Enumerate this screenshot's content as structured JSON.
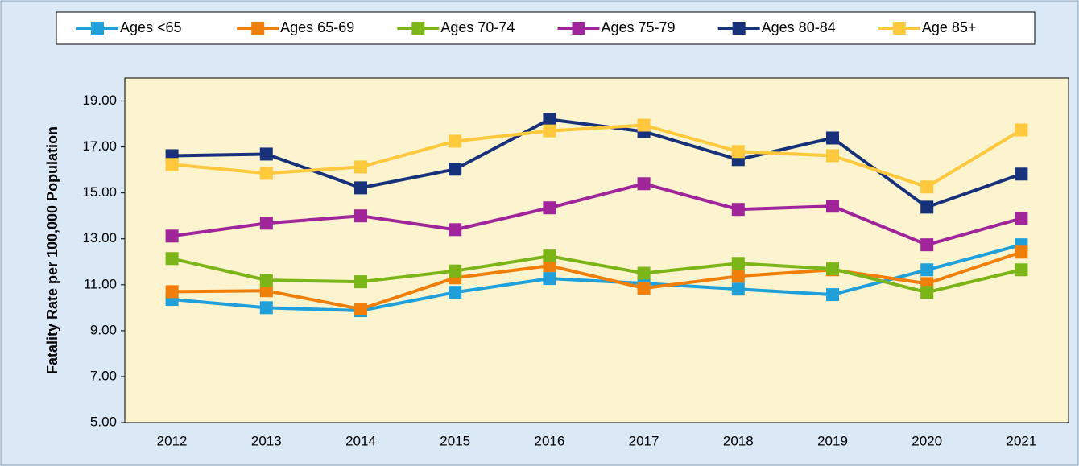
{
  "chart_data": {
    "type": "line",
    "y_label": "Fatality Rate per 100,000 Population",
    "categories": [
      "2012",
      "2013",
      "2014",
      "2015",
      "2016",
      "2017",
      "2018",
      "2019",
      "2020",
      "2021"
    ],
    "series": [
      {
        "name": "Ages <65",
        "color": "#1fa0db",
        "values": [
          10.36,
          10.0,
          9.87,
          10.67,
          11.27,
          11.06,
          10.81,
          10.57,
          11.65,
          12.74
        ]
      },
      {
        "name": "Ages 65-69",
        "color": "#f07f09",
        "values": [
          10.7,
          10.74,
          9.94,
          11.3,
          11.83,
          10.85,
          11.37,
          11.65,
          11.05,
          12.42
        ]
      },
      {
        "name": "Ages 70-74",
        "color": "#7cb518",
        "values": [
          12.14,
          11.2,
          11.13,
          11.6,
          12.25,
          11.5,
          11.93,
          11.69,
          10.67,
          11.65
        ]
      },
      {
        "name": "Ages 75-79",
        "color": "#a0259a",
        "values": [
          13.12,
          13.68,
          14.0,
          13.4,
          14.35,
          15.4,
          14.28,
          14.42,
          12.74,
          13.89
        ]
      },
      {
        "name": "Ages 80-84",
        "color": "#17327a",
        "values": [
          16.62,
          16.69,
          15.22,
          16.03,
          18.2,
          17.67,
          16.45,
          17.39,
          14.38,
          15.82
        ]
      },
      {
        "name": "Age 85+",
        "color": "#ffc83d",
        "values": [
          16.24,
          15.85,
          16.13,
          17.25,
          17.7,
          17.95,
          16.8,
          16.62,
          15.26,
          17.74
        ]
      }
    ],
    "ylim": [
      5,
      20
    ],
    "yticks": [
      {
        "value": 5,
        "label": "5.00"
      },
      {
        "value": 7,
        "label": "7.00"
      },
      {
        "value": 9,
        "label": "9.00"
      },
      {
        "value": 11,
        "label": "11.00"
      },
      {
        "value": 13,
        "label": "13.00"
      },
      {
        "value": 15,
        "label": "15.00"
      },
      {
        "value": 17,
        "label": "17.00"
      },
      {
        "value": 19,
        "label": "19.00"
      }
    ],
    "legend": "top"
  }
}
